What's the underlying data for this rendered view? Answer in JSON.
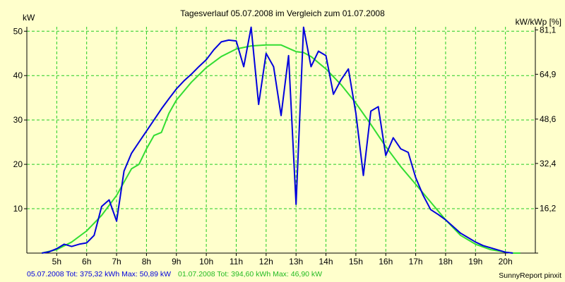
{
  "chart_data": {
    "type": "line",
    "title": "Tagesverlauf 05.07.2008 im Vergleich zum 01.07.2008",
    "ylabel_left": "kW",
    "ylabel_right": "kW/kWp [%]",
    "xlim": [
      4,
      21
    ],
    "ylim": [
      0,
      51
    ],
    "grid": true,
    "x_ticks": [
      5,
      6,
      7,
      8,
      9,
      10,
      11,
      12,
      13,
      14,
      15,
      16,
      17,
      18,
      19,
      20
    ],
    "x_tick_labels": [
      "5h",
      "6h",
      "7h",
      "8h",
      "9h",
      "10h",
      "11h",
      "12h",
      "13h",
      "14h",
      "15h",
      "16h",
      "17h",
      "18h",
      "19h",
      "20h"
    ],
    "y_ticks": [
      10,
      20,
      30,
      40,
      50
    ],
    "y_tick_labels": [
      "10",
      "20",
      "30",
      "40",
      "50"
    ],
    "y2_ticks": [
      0,
      10.1,
      20.2,
      30.2,
      40.3,
      50.3
    ],
    "y2_tick_labels": [
      "",
      "16,2",
      "32,4",
      "48,6",
      "64,9",
      "81,1"
    ],
    "series": [
      {
        "name": "05.07.2008",
        "color": "#0000dd",
        "x": [
          4.5,
          4.75,
          5.0,
          5.25,
          5.5,
          5.75,
          6.0,
          6.25,
          6.5,
          6.75,
          7.0,
          7.25,
          7.5,
          7.75,
          8.0,
          8.25,
          8.5,
          8.75,
          9.0,
          9.25,
          9.5,
          9.75,
          10.0,
          10.25,
          10.5,
          10.75,
          11.0,
          11.25,
          11.5,
          11.75,
          12.0,
          12.25,
          12.5,
          12.75,
          13.0,
          13.25,
          13.5,
          13.75,
          14.0,
          14.25,
          14.5,
          14.75,
          15.0,
          15.25,
          15.5,
          15.75,
          16.0,
          16.25,
          16.5,
          16.75,
          17.0,
          17.25,
          17.5,
          17.75,
          18.0,
          18.25,
          18.5,
          18.75,
          19.0,
          19.25,
          19.5,
          19.75,
          20.0,
          20.25
        ],
        "y": [
          0,
          0.3,
          1.0,
          2.0,
          1.5,
          2.0,
          2.3,
          4.0,
          10.5,
          12.0,
          7.2,
          18.5,
          22.5,
          25.0,
          27.5,
          30.0,
          32.5,
          34.8,
          37.0,
          38.8,
          40.3,
          42.0,
          43.6,
          45.8,
          47.6,
          48.0,
          47.8,
          42.0,
          50.9,
          33.5,
          45.0,
          42.0,
          31.0,
          44.5,
          11.0,
          50.9,
          42.0,
          45.5,
          44.5,
          35.8,
          39.0,
          41.5,
          31.5,
          17.5,
          32.0,
          33.0,
          22.0,
          26.0,
          23.5,
          22.7,
          17.0,
          13.0,
          9.8,
          8.7,
          7.5,
          6.0,
          4.5,
          3.5,
          2.5,
          1.7,
          1.2,
          0.7,
          0.2,
          0
        ]
      },
      {
        "name": "01.07.2008",
        "color": "#33dd33",
        "x": [
          4.5,
          5.0,
          5.5,
          6.0,
          6.5,
          7.0,
          7.25,
          7.5,
          7.75,
          8.0,
          8.25,
          8.5,
          8.75,
          9.0,
          9.5,
          10.0,
          10.5,
          11.0,
          11.5,
          12.0,
          12.5,
          13.0,
          13.25,
          13.5,
          14.0,
          14.5,
          15.0,
          15.5,
          16.0,
          16.5,
          17.0,
          17.5,
          18.0,
          18.5,
          19.0,
          19.5,
          20.0,
          20.25,
          20.5
        ],
        "y": [
          0,
          0.8,
          2.5,
          5.0,
          8.5,
          13.0,
          16.0,
          19.0,
          20.0,
          23.5,
          26.5,
          27.2,
          31.5,
          34.5,
          38.5,
          41.8,
          44.3,
          46.0,
          46.7,
          46.9,
          46.9,
          45.4,
          45.2,
          44.3,
          41.5,
          38.0,
          33.8,
          29.0,
          24.0,
          19.5,
          15.5,
          11.5,
          7.5,
          4.0,
          2.0,
          0.8,
          0.2,
          0,
          0
        ]
      }
    ],
    "footer": {
      "series1_text": "05.07.2008 Tot: 375,32 kWh Max: 50,89 kW",
      "series2_text": "01.07.2008 Tot: 394,60 kWh Max: 46,90 kW",
      "credit": "SunnyReport pinxit"
    }
  },
  "colors": {
    "background": "#ffffcc",
    "grid": "#22cc22",
    "axis": "#000000",
    "series1": "#0000dd",
    "series2": "#33dd33"
  }
}
